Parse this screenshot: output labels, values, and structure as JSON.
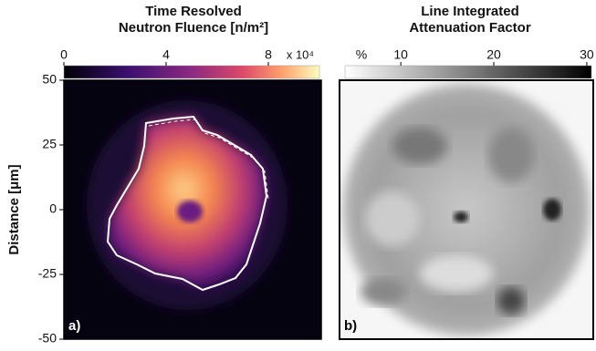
{
  "chart_data": [
    {
      "type": "heatmap",
      "title": [
        "Time Resolved",
        "Neutron Fluence [n/m²]"
      ],
      "colorbar": {
        "colormap": "magma",
        "lim": [
          0,
          10
        ],
        "ticks": [
          0,
          4,
          8
        ],
        "multiplier_label": "x 10⁴"
      },
      "ylabel": "Distance [μm]",
      "ylim": [
        -50,
        50
      ],
      "yticks": [
        50,
        25,
        0,
        -25,
        -50
      ],
      "panel_label": "a)"
    },
    {
      "type": "heatmap",
      "title": [
        "Line Integrated",
        "Attenuation Factor"
      ],
      "colorbar": {
        "colormap": "gray",
        "unit_label": "%",
        "lim": [
          4,
          30.5
        ],
        "ticks": [
          10,
          20,
          30
        ]
      },
      "panel_label": "b)"
    }
  ]
}
